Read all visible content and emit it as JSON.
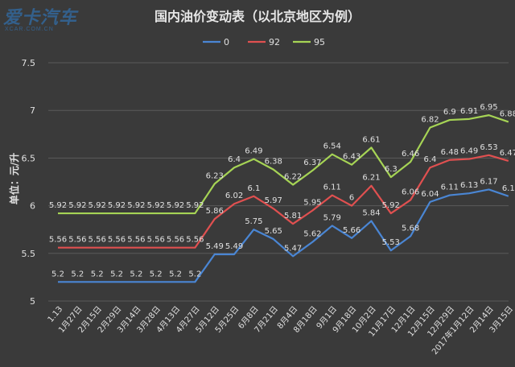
{
  "watermark": {
    "logo_text": "爱卡汽车",
    "sub_text": "XCAR.COM.CN"
  },
  "colors": {
    "background": "#3a3a3a",
    "grid": "#5a5a5a",
    "text": "#e0e0e0",
    "series_0": "#4a86d4",
    "series_92": "#e05050",
    "series_95": "#a6d455"
  },
  "chart_data": {
    "type": "line",
    "title": "国内油价变动表（以北京地区为例）",
    "xlabel": "",
    "ylabel": "单位：元/升",
    "ylim": [
      5,
      7.5
    ],
    "yticks": [
      "5",
      "5.5",
      "6",
      "6.5",
      "7",
      "7.5"
    ],
    "grid": true,
    "legend_position": "top-center",
    "categories": [
      "1.13",
      "1月27日",
      "2月15日",
      "2月29日",
      "3月14日",
      "3月28日",
      "4月13日",
      "4月27日",
      "5月12日",
      "5月25日",
      "6月8日",
      "7月21日",
      "8月4日",
      "8月18日",
      "9月1日",
      "9月18日",
      "10月2日",
      "11月17日",
      "12月1日",
      "12月15日",
      "12月29日",
      "2017年1月12日",
      "2月14日",
      "3月15日"
    ],
    "series": [
      {
        "name": "0",
        "color": "#4a86d4",
        "values": [
          5.2,
          5.2,
          5.2,
          5.2,
          5.2,
          5.2,
          5.2,
          5.2,
          5.49,
          5.49,
          5.75,
          5.65,
          5.47,
          5.62,
          5.79,
          5.66,
          5.84,
          5.53,
          5.68,
          6.04,
          6.11,
          6.13,
          6.17,
          6.1
        ],
        "labels": [
          "5.2",
          "5.2",
          "5.2",
          "5.2",
          "5.2",
          "5.2",
          "5.2",
          "5.2",
          "5.49",
          "5.49",
          "5.75",
          "5.65",
          "5.47",
          "5.62",
          "5.79",
          "5.66",
          "5.84",
          "5.53",
          "5.68",
          "6.04",
          "6.11",
          "6.13",
          "6.17",
          "6.1"
        ]
      },
      {
        "name": "92",
        "color": "#e05050",
        "values": [
          5.56,
          5.56,
          5.56,
          5.56,
          5.56,
          5.56,
          5.56,
          5.56,
          5.86,
          6.02,
          6.1,
          5.97,
          5.81,
          5.95,
          6.11,
          6,
          6.21,
          5.92,
          6.06,
          6.4,
          6.48,
          6.49,
          6.53,
          6.47
        ],
        "labels": [
          "5.56",
          "5.56",
          "5.56",
          "5.56",
          "5.56",
          "5.56",
          "5.56",
          "5.56",
          "5.86",
          "6.02",
          "6.1",
          "5.97",
          "5.81",
          "5.95",
          "6.11",
          "6",
          "6.21",
          "5.92",
          "6.06",
          "6.4",
          "6.48",
          "6.49",
          "6.53",
          "6.47"
        ]
      },
      {
        "name": "95",
        "color": "#a6d455",
        "values": [
          5.92,
          5.92,
          5.92,
          5.92,
          5.92,
          5.92,
          5.92,
          5.92,
          6.23,
          6.4,
          6.49,
          6.38,
          6.22,
          6.37,
          6.54,
          6.43,
          6.61,
          6.3,
          6.46,
          6.82,
          6.9,
          6.91,
          6.95,
          6.88
        ],
        "labels": [
          "5.92",
          "5.92",
          "5.92",
          "5.92",
          "5.92",
          "5.92",
          "5.92",
          "5.92",
          "6.23",
          "6.4",
          "6.49",
          "6.38",
          "6.22",
          "6.37",
          "6.54",
          "6.43",
          "6.61",
          "6.3",
          "6.46",
          "6.82",
          "6.9",
          "6.91",
          "6.95",
          "6.88"
        ]
      }
    ]
  }
}
